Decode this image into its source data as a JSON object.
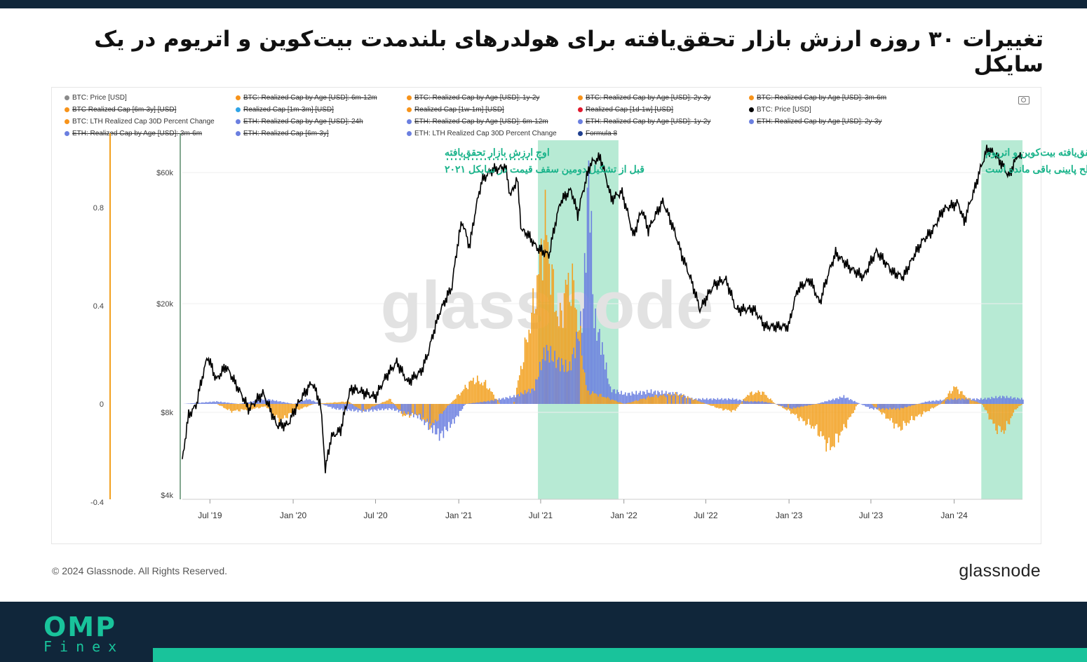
{
  "title": "تغییرات ۳۰ روزه ارزش بازار تحقق‌یافته برای هولدرهای بلندمدت بیت‌کوین و اتریوم در یک سایکل",
  "legend": [
    {
      "label": "BTC: Price [USD]",
      "color": "#8a8a8a",
      "struck": false
    },
    {
      "label": "BTC: Realized Cap by Age [USD]: 6m-12m",
      "color": "#f7931a",
      "struck": true
    },
    {
      "label": "BTC: Realized Cap by Age [USD]: 1y-2y",
      "color": "#f7931a",
      "struck": true
    },
    {
      "label": "BTC: Realized Cap by Age [USD]: 2y-3y",
      "color": "#f7931a",
      "struck": true
    },
    {
      "label": "BTC: Realized Cap by Age [USD]: 3m-6m",
      "color": "#f7931a",
      "struck": true
    },
    {
      "label": "BTC Realized Cap [6m-3y] [USD]",
      "color": "#f7931a",
      "struck": true
    },
    {
      "label": "Realized Cap [1m-3m] [USD]",
      "color": "#2fa4e7",
      "struck": true
    },
    {
      "label": "Realized Cap [1w-1m] [USD]",
      "color": "#f7931a",
      "struck": true
    },
    {
      "label": "Realized Cap [1d-1w] [USD]",
      "color": "#e0182d",
      "struck": true
    },
    {
      "label": "BTC: Price [USD]",
      "color": "#000000",
      "struck": false
    },
    {
      "label": "BTC: LTH Realized Cap 30D Percent Change",
      "color": "#f7931a",
      "struck": false
    },
    {
      "label": "ETH: Realized Cap by Age [USD]: 24h",
      "color": "#6b7fe0",
      "struck": true
    },
    {
      "label": "ETH: Realized Cap by Age [USD]: 6m-12m",
      "color": "#6b7fe0",
      "struck": true
    },
    {
      "label": "ETH: Realized Cap by Age [USD]: 1y-2y",
      "color": "#6b7fe0",
      "struck": true
    },
    {
      "label": "ETH: Realized Cap by Age [USD]: 2y-3y",
      "color": "#6b7fe0",
      "struck": true
    },
    {
      "label": "ETH: Realized Cap by Age [USD]: 3m-6m",
      "color": "#6b7fe0",
      "struck": true
    },
    {
      "label": "ETH: Realized Cap [6m-3y]",
      "color": "#6b7fe0",
      "struck": true
    },
    {
      "label": "ETH: LTH Realized Cap 30D Percent Change",
      "color": "#6b7fe0",
      "struck": false
    },
    {
      "label": "Formula 8",
      "color": "#1f3f8f",
      "struck": true
    }
  ],
  "annotations": {
    "left_line1": "اوج ارزش بازار تحقق‌یافته",
    "left_line2": "قبل از تشکیل دومین سقف قیمت در سایکل ۲۰۲۱",
    "right_line1": "ارزش بازار تحقق‌یافته بیت‌کوین و اتریوم",
    "right_line2": "برای هولدرهای بلندمدت در سطح پایینی باقی مانده است"
  },
  "watermark": "glassnode",
  "footer": {
    "copyright": "© 2024 Glassnode. All Rights Reserved.",
    "logo": "glassnode"
  },
  "brand": {
    "name": "OMP",
    "sub": "Finex"
  },
  "colors": {
    "btc": "#f2a01f",
    "eth": "#6b7fe0",
    "price": "#000000",
    "highlight": "#9fe3c6",
    "accent": "#19c39b",
    "dark": "#10263a"
  },
  "chart_data": {
    "type": "line+bar",
    "x_ticks": [
      "Jul '19",
      "Jan '20",
      "Jul '20",
      "Jan '21",
      "Jul '21",
      "Jan '22",
      "Jul '22",
      "Jan '23",
      "Jul '23",
      "Jan '24"
    ],
    "y_left_ticks": [
      "0.8",
      "0.4",
      "0",
      "-0.4"
    ],
    "y_left_range": [
      -0.4,
      1.0
    ],
    "y_right_ticks": [
      "$60k",
      "$20k",
      "$8k",
      "$4k"
    ],
    "y_right_scale": "log",
    "x_range": [
      "2019-05-01",
      "2024-05-31"
    ],
    "highlight_ranges": [
      [
        "2021-06-25",
        "2021-12-20"
      ],
      [
        "2024-03-01",
        "2024-05-31"
      ]
    ],
    "series": [
      {
        "name": "BTC: Price [USD]",
        "axis": "right",
        "points": [
          [
            "2019-05-01",
            5300
          ],
          [
            "2019-05-15",
            7800
          ],
          [
            "2019-06-01",
            8500
          ],
          [
            "2019-06-26",
            12800
          ],
          [
            "2019-07-15",
            10500
          ],
          [
            "2019-08-05",
            11800
          ],
          [
            "2019-09-01",
            9800
          ],
          [
            "2019-09-25",
            8200
          ],
          [
            "2019-10-26",
            9400
          ],
          [
            "2019-11-25",
            7200
          ],
          [
            "2019-12-20",
            7200
          ],
          [
            "2020-01-15",
            8800
          ],
          [
            "2020-02-12",
            10300
          ],
          [
            "2020-03-01",
            8600
          ],
          [
            "2020-03-12",
            4900
          ],
          [
            "2020-03-25",
            6500
          ],
          [
            "2020-04-15",
            6900
          ],
          [
            "2020-05-08",
            9800
          ],
          [
            "2020-06-01",
            9500
          ],
          [
            "2020-07-01",
            9100
          ],
          [
            "2020-07-27",
            11000
          ],
          [
            "2020-08-17",
            12200
          ],
          [
            "2020-09-10",
            10300
          ],
          [
            "2020-10-10",
            11300
          ],
          [
            "2020-10-25",
            13100
          ],
          [
            "2020-11-20",
            18600
          ],
          [
            "2020-12-17",
            23000
          ],
          [
            "2021-01-08",
            40000
          ],
          [
            "2021-01-25",
            32000
          ],
          [
            "2021-02-21",
            56000
          ],
          [
            "2021-03-13",
            61000
          ],
          [
            "2021-04-14",
            63000
          ],
          [
            "2021-04-25",
            49000
          ],
          [
            "2021-05-10",
            57000
          ],
          [
            "2021-05-19",
            37000
          ],
          [
            "2021-06-01",
            36000
          ],
          [
            "2021-06-22",
            32000
          ],
          [
            "2021-07-20",
            30000
          ],
          [
            "2021-08-14",
            47000
          ],
          [
            "2021-09-06",
            52000
          ],
          [
            "2021-09-21",
            42000
          ],
          [
            "2021-10-20",
            65000
          ],
          [
            "2021-11-10",
            68000
          ],
          [
            "2021-12-04",
            48000
          ],
          [
            "2021-12-27",
            51000
          ],
          [
            "2022-01-22",
            35000
          ],
          [
            "2022-02-10",
            44000
          ],
          [
            "2022-02-24",
            37000
          ],
          [
            "2022-03-28",
            47000
          ],
          [
            "2022-05-09",
            30000
          ],
          [
            "2022-06-18",
            19000
          ],
          [
            "2022-07-20",
            23500
          ],
          [
            "2022-08-14",
            24500
          ],
          [
            "2022-09-06",
            19000
          ],
          [
            "2022-10-15",
            19100
          ],
          [
            "2022-11-09",
            16500
          ],
          [
            "2022-12-31",
            16500
          ],
          [
            "2023-01-20",
            22500
          ],
          [
            "2023-02-16",
            24500
          ],
          [
            "2023-03-10",
            20000
          ],
          [
            "2023-04-14",
            30500
          ],
          [
            "2023-05-15",
            27000
          ],
          [
            "2023-06-15",
            25000
          ],
          [
            "2023-07-13",
            31000
          ],
          [
            "2023-08-18",
            26000
          ],
          [
            "2023-09-11",
            25000
          ],
          [
            "2023-10-24",
            34000
          ],
          [
            "2023-11-15",
            37000
          ],
          [
            "2023-12-08",
            44000
          ],
          [
            "2024-01-10",
            46500
          ],
          [
            "2024-01-23",
            39500
          ],
          [
            "2024-02-15",
            52000
          ],
          [
            "2024-03-14",
            73000
          ],
          [
            "2024-04-01",
            70000
          ],
          [
            "2024-04-19",
            63000
          ],
          [
            "2024-05-01",
            58000
          ],
          [
            "2024-05-21",
            70000
          ],
          [
            "2024-05-31",
            67000
          ]
        ]
      },
      {
        "name": "BTC: LTH Realized Cap 30D Percent Change",
        "axis": "left",
        "points": [
          [
            "2019-05-01",
            0.0
          ],
          [
            "2019-07-15",
            0.0
          ],
          [
            "2019-08-15",
            -0.03
          ],
          [
            "2019-10-01",
            -0.02
          ],
          [
            "2019-11-01",
            -0.01
          ],
          [
            "2019-12-01",
            -0.07
          ],
          [
            "2020-01-01",
            -0.03
          ],
          [
            "2020-02-15",
            0.0
          ],
          [
            "2020-05-01",
            0.01
          ],
          [
            "2020-06-01",
            -0.03
          ],
          [
            "2020-08-01",
            0.02
          ],
          [
            "2020-09-01",
            -0.05
          ],
          [
            "2020-10-01",
            -0.04
          ],
          [
            "2020-11-01",
            -0.09
          ],
          [
            "2020-12-01",
            -0.02
          ],
          [
            "2021-01-01",
            0.04
          ],
          [
            "2021-02-01",
            0.1
          ],
          [
            "2021-03-01",
            0.08
          ],
          [
            "2021-04-01",
            0.0
          ],
          [
            "2021-05-01",
            0.0
          ],
          [
            "2021-06-15",
            0.4
          ],
          [
            "2021-07-10",
            0.74
          ],
          [
            "2021-07-25",
            0.5
          ],
          [
            "2021-08-10",
            0.32
          ],
          [
            "2021-08-25",
            0.48
          ],
          [
            "2021-09-10",
            0.48
          ],
          [
            "2021-09-25",
            0.27
          ],
          [
            "2021-10-10",
            0.05
          ],
          [
            "2021-11-01",
            0.04
          ],
          [
            "2021-12-01",
            0.02
          ],
          [
            "2022-01-01",
            0.0
          ],
          [
            "2022-03-01",
            0.03
          ],
          [
            "2022-05-01",
            0.04
          ],
          [
            "2022-06-01",
            0.02
          ],
          [
            "2022-07-01",
            0.0
          ],
          [
            "2022-08-01",
            -0.02
          ],
          [
            "2022-09-01",
            -0.03
          ],
          [
            "2022-10-01",
            0.04
          ],
          [
            "2022-11-01",
            0.05
          ],
          [
            "2022-12-01",
            0.0
          ],
          [
            "2023-01-01",
            -0.03
          ],
          [
            "2023-02-01",
            -0.07
          ],
          [
            "2023-03-01",
            -0.1
          ],
          [
            "2023-04-01",
            -0.18
          ],
          [
            "2023-05-01",
            -0.1
          ],
          [
            "2023-06-01",
            0.0
          ],
          [
            "2023-07-01",
            0.0
          ],
          [
            "2023-08-01",
            -0.05
          ],
          [
            "2023-09-01",
            -0.1
          ],
          [
            "2023-10-01",
            -0.06
          ],
          [
            "2023-11-01",
            -0.03
          ],
          [
            "2023-12-01",
            0.0
          ],
          [
            "2024-01-01",
            0.07
          ],
          [
            "2024-02-01",
            0.02
          ],
          [
            "2024-03-01",
            0.0
          ],
          [
            "2024-04-01",
            -0.1
          ],
          [
            "2024-04-20",
            -0.11
          ],
          [
            "2024-05-15",
            -0.02
          ],
          [
            "2024-05-31",
            0.0
          ]
        ]
      },
      {
        "name": "ETH: LTH Realized Cap 30D Percent Change",
        "axis": "left",
        "points": [
          [
            "2019-05-01",
            0.0
          ],
          [
            "2019-07-15",
            0.01
          ],
          [
            "2019-09-01",
            0.0
          ],
          [
            "2019-11-01",
            0.02
          ],
          [
            "2020-01-01",
            0.0
          ],
          [
            "2020-02-01",
            0.02
          ],
          [
            "2020-04-01",
            -0.02
          ],
          [
            "2020-06-01",
            -0.03
          ],
          [
            "2020-08-01",
            -0.02
          ],
          [
            "2020-10-01",
            -0.05
          ],
          [
            "2020-11-20",
            -0.13
          ],
          [
            "2020-12-20",
            -0.07
          ],
          [
            "2021-01-15",
            0.0
          ],
          [
            "2021-03-01",
            0.01
          ],
          [
            "2021-05-01",
            0.03
          ],
          [
            "2021-06-15",
            0.06
          ],
          [
            "2021-07-10",
            0.22
          ],
          [
            "2021-08-01",
            0.18
          ],
          [
            "2021-09-01",
            0.14
          ],
          [
            "2021-10-01",
            0.35
          ],
          [
            "2021-10-15",
            0.98
          ],
          [
            "2021-10-25",
            0.35
          ],
          [
            "2021-11-10",
            0.25
          ],
          [
            "2021-12-01",
            0.06
          ],
          [
            "2022-01-01",
            0.04
          ],
          [
            "2022-03-01",
            0.05
          ],
          [
            "2022-05-01",
            0.04
          ],
          [
            "2022-06-01",
            0.02
          ],
          [
            "2022-07-01",
            0.02
          ],
          [
            "2022-08-01",
            0.02
          ],
          [
            "2022-09-01",
            0.02
          ],
          [
            "2022-10-01",
            0.01
          ],
          [
            "2022-11-01",
            0.01
          ],
          [
            "2022-12-01",
            0.0
          ],
          [
            "2023-01-01",
            -0.02
          ],
          [
            "2023-03-01",
            0.0
          ],
          [
            "2023-05-01",
            0.03
          ],
          [
            "2023-07-01",
            -0.02
          ],
          [
            "2023-09-01",
            -0.02
          ],
          [
            "2023-11-01",
            0.01
          ],
          [
            "2024-01-01",
            0.02
          ],
          [
            "2024-03-01",
            0.02
          ],
          [
            "2024-04-15",
            0.03
          ],
          [
            "2024-05-31",
            0.02
          ]
        ]
      }
    ]
  }
}
